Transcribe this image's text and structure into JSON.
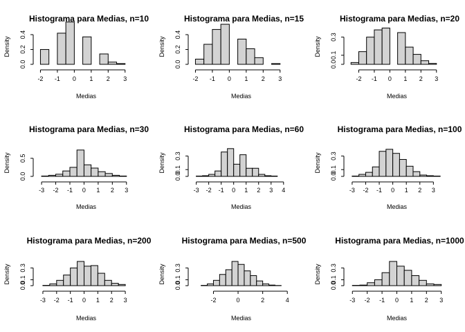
{
  "chart_data": [
    {
      "type": "bar",
      "title": "Histograma para Medias, n=10",
      "xlabel": "Medias",
      "ylabel": "Density",
      "xticks": [
        -2,
        -1,
        0,
        1,
        2,
        3
      ],
      "yticks": [
        0.0,
        0.2,
        0.4
      ],
      "ytick_labels": [
        "0.0",
        "0.2",
        "0.4"
      ],
      "xlim": [
        -2.1,
        3.5
      ],
      "ylim": [
        0,
        0.55
      ],
      "bins": [
        [
          -2,
          -1.5,
          0.2
        ],
        [
          -1,
          -0.5,
          0.42
        ],
        [
          -0.5,
          0,
          0.57
        ],
        [
          0.5,
          1,
          0.37
        ],
        [
          1.5,
          2,
          0.14
        ],
        [
          2,
          2.5,
          0.03
        ],
        [
          2.5,
          3,
          0.01
        ]
      ]
    },
    {
      "type": "bar",
      "title": "Histograma para Medias, n=15",
      "xlabel": "Medias",
      "ylabel": "Density",
      "xticks": [
        -2,
        -1,
        0,
        1,
        2,
        3
      ],
      "yticks": [
        0.0,
        0.2,
        0.4
      ],
      "ytick_labels": [
        "0.0",
        "0.2",
        "0.4"
      ],
      "xlim": [
        -2.1,
        3.5
      ],
      "ylim": [
        0,
        0.55
      ],
      "bins": [
        [
          -2,
          -1.5,
          0.07
        ],
        [
          -1.5,
          -1,
          0.27
        ],
        [
          -1,
          -0.5,
          0.47
        ],
        [
          -0.5,
          0,
          0.54
        ],
        [
          0.5,
          1,
          0.34
        ],
        [
          1,
          1.5,
          0.21
        ],
        [
          1.5,
          2,
          0.09
        ],
        [
          2.5,
          3,
          0.01
        ]
      ]
    },
    {
      "type": "bar",
      "title": "Histograma para Medias, n=20",
      "xlabel": "Medias",
      "ylabel": "Density",
      "xticks": [
        -2,
        -1,
        0,
        1,
        2,
        3
      ],
      "yticks": [
        0.0,
        0.1,
        0.3
      ],
      "ytick_labels": [
        "0.0",
        "0.1",
        "0.3"
      ],
      "xlim": [
        -2.6,
        3.5
      ],
      "ylim": [
        0,
        0.45
      ],
      "bins": [
        [
          -2.5,
          -2,
          0.02
        ],
        [
          -2,
          -1.5,
          0.14
        ],
        [
          -1.5,
          -1,
          0.3
        ],
        [
          -1,
          -0.5,
          0.38
        ],
        [
          -0.5,
          0,
          0.4
        ],
        [
          0.5,
          1,
          0.35
        ],
        [
          1,
          1.5,
          0.19
        ],
        [
          1.5,
          2,
          0.11
        ],
        [
          2,
          2.5,
          0.04
        ],
        [
          2.5,
          3,
          0.01
        ]
      ]
    },
    {
      "type": "bar",
      "title": "Histograma para Medias, n=30",
      "xlabel": "Medias",
      "ylabel": "Density",
      "xticks": [
        -3,
        -2,
        -1,
        0,
        1,
        2,
        3
      ],
      "yticks": [
        0.0,
        0.5
      ],
      "ytick_labels": [
        "0.0",
        "0.5"
      ],
      "xlim": [
        -3.2,
        3.5
      ],
      "ylim": [
        0,
        0.9
      ],
      "bins": [
        [
          -3,
          -2.5,
          0.01
        ],
        [
          -2.5,
          -2,
          0.03
        ],
        [
          -2,
          -1.5,
          0.06
        ],
        [
          -1.5,
          -1,
          0.15
        ],
        [
          -1,
          -0.5,
          0.25
        ],
        [
          -0.5,
          0,
          0.73
        ],
        [
          0,
          0.5,
          0.32
        ],
        [
          0.5,
          1,
          0.23
        ],
        [
          1,
          1.5,
          0.13
        ],
        [
          1.5,
          2,
          0.08
        ],
        [
          2,
          2.5,
          0.03
        ],
        [
          2.5,
          3,
          0.01
        ]
      ]
    },
    {
      "type": "bar",
      "title": "Histograma para Medias, n=60",
      "xlabel": "Medias",
      "ylabel": "Density",
      "xticks": [
        -3,
        -2,
        -1,
        0,
        1,
        2,
        3,
        4
      ],
      "yticks": [
        0.0,
        0.1,
        0.3
      ],
      "ytick_labels": [
        "0.0",
        "0.1",
        "0.3"
      ],
      "xlim": [
        -3.2,
        4.4
      ],
      "ylim": [
        0,
        0.48
      ],
      "bins": [
        [
          -3,
          -2.5,
          0.005
        ],
        [
          -2.5,
          -2,
          0.01
        ],
        [
          -2,
          -1.5,
          0.03
        ],
        [
          -1.5,
          -1,
          0.08
        ],
        [
          -1,
          -0.5,
          0.36
        ],
        [
          -0.5,
          0,
          0.41
        ],
        [
          0,
          0.5,
          0.18
        ],
        [
          0.5,
          1,
          0.32
        ],
        [
          1,
          1.5,
          0.12
        ],
        [
          1.5,
          2,
          0.12
        ],
        [
          2,
          2.5,
          0.03
        ],
        [
          2.5,
          3,
          0.01
        ],
        [
          3,
          3.5,
          0.005
        ]
      ]
    },
    {
      "type": "bar",
      "title": "Histograma para Medias, n=100",
      "xlabel": "Medias",
      "ylabel": "Density",
      "xticks": [
        -3,
        -2,
        -1,
        0,
        1,
        2,
        3
      ],
      "yticks": [
        0.0,
        0.1,
        0.3
      ],
      "ytick_labels": [
        "0.0",
        "0.1",
        "0.3"
      ],
      "xlim": [
        -3.2,
        3.8
      ],
      "ylim": [
        0,
        0.48
      ],
      "bins": [
        [
          -3,
          -2.5,
          0.005
        ],
        [
          -2.5,
          -2,
          0.03
        ],
        [
          -2,
          -1.5,
          0.06
        ],
        [
          -1.5,
          -1,
          0.14
        ],
        [
          -1,
          -0.5,
          0.37
        ],
        [
          -0.5,
          0,
          0.4
        ],
        [
          0,
          0.5,
          0.34
        ],
        [
          0.5,
          1,
          0.25
        ],
        [
          1,
          1.5,
          0.15
        ],
        [
          1.5,
          2,
          0.07
        ],
        [
          2,
          2.5,
          0.02
        ],
        [
          2.5,
          3,
          0.01
        ],
        [
          3,
          3.5,
          0.005
        ]
      ]
    },
    {
      "type": "bar",
      "title": "Histograma para Medias, n=200",
      "xlabel": "Medias",
      "ylabel": "Density",
      "xticks": [
        -3,
        -2,
        -1,
        0,
        1,
        2,
        3
      ],
      "yticks": [
        0.0,
        0.1,
        0.3
      ],
      "ytick_labels": [
        "0.0",
        "0.1",
        "0.3"
      ],
      "xlim": [
        -3.3,
        3.6
      ],
      "ylim": [
        0,
        0.48
      ],
      "bins": [
        [
          -3,
          -2.5,
          0.005
        ],
        [
          -2.5,
          -2,
          0.03
        ],
        [
          -2,
          -1.5,
          0.09
        ],
        [
          -1.5,
          -1,
          0.18
        ],
        [
          -1,
          -0.5,
          0.3
        ],
        [
          -0.5,
          0,
          0.41
        ],
        [
          0,
          0.5,
          0.33
        ],
        [
          0.5,
          1,
          0.34
        ],
        [
          1,
          1.5,
          0.21
        ],
        [
          1.5,
          2,
          0.09
        ],
        [
          2,
          2.5,
          0.04
        ],
        [
          2.5,
          3,
          0.02
        ]
      ]
    },
    {
      "type": "bar",
      "title": "Histograma para Medias, n=500",
      "xlabel": "Medias",
      "ylabel": "Density",
      "xticks": [
        -2,
        0,
        2,
        4
      ],
      "yticks": [
        0.0,
        0.1,
        0.3
      ],
      "ytick_labels": [
        "0.0",
        "0.1",
        "0.3"
      ],
      "xlim": [
        -3.6,
        4.1
      ],
      "ylim": [
        0,
        0.48
      ],
      "bins": [
        [
          -3,
          -2.5,
          0.005
        ],
        [
          -2.5,
          -2,
          0.03
        ],
        [
          -2,
          -1.5,
          0.09
        ],
        [
          -1.5,
          -1,
          0.19
        ],
        [
          -1,
          -0.5,
          0.27
        ],
        [
          -0.5,
          0,
          0.41
        ],
        [
          0,
          0.5,
          0.36
        ],
        [
          0.5,
          1,
          0.25
        ],
        [
          1,
          1.5,
          0.17
        ],
        [
          1.5,
          2,
          0.08
        ],
        [
          2,
          2.5,
          0.03
        ],
        [
          2.5,
          3,
          0.01
        ],
        [
          3,
          3.5,
          0.003
        ]
      ]
    },
    {
      "type": "bar",
      "title": "Histograma para Medias, n=1000",
      "xlabel": "Medias",
      "ylabel": "Density",
      "xticks": [
        -3,
        -2,
        -1,
        0,
        1,
        2,
        3
      ],
      "yticks": [
        0.0,
        0.1,
        0.3
      ],
      "ytick_labels": [
        "0.0",
        "0.1",
        "0.3"
      ],
      "xlim": [
        -3.2,
        3.2
      ],
      "ylim": [
        0,
        0.48
      ],
      "bins": [
        [
          -3,
          -2.5,
          0.005
        ],
        [
          -2.5,
          -2,
          0.01
        ],
        [
          -2,
          -1.5,
          0.05
        ],
        [
          -1.5,
          -1,
          0.1
        ],
        [
          -1,
          -0.5,
          0.22
        ],
        [
          -0.5,
          0,
          0.41
        ],
        [
          0,
          0.5,
          0.33
        ],
        [
          0.5,
          1,
          0.26
        ],
        [
          1,
          1.5,
          0.17
        ],
        [
          1.5,
          2,
          0.09
        ],
        [
          2,
          2.5,
          0.03
        ],
        [
          2.5,
          3,
          0.02
        ]
      ]
    }
  ]
}
